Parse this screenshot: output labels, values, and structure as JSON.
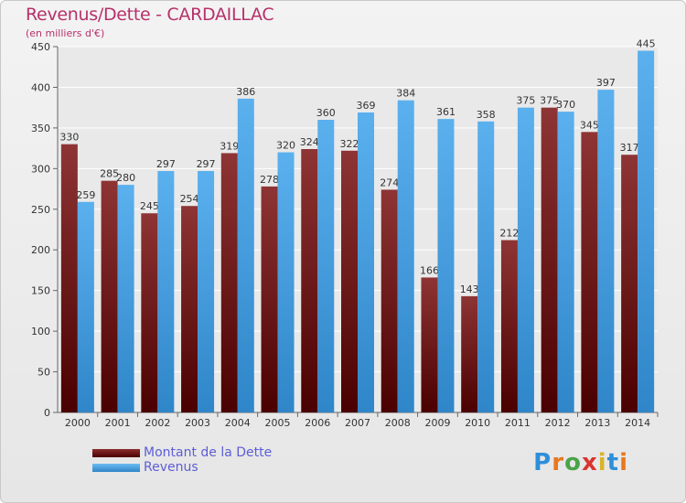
{
  "chart_data": {
    "type": "bar",
    "title": "Revenus/Dette - CARDAILLAC",
    "subtitle": "(en milliers d'€)",
    "categories": [
      "2000",
      "2001",
      "2002",
      "2003",
      "2004",
      "2005",
      "2006",
      "2007",
      "2008",
      "2009",
      "2010",
      "2011",
      "2012",
      "2013",
      "2014"
    ],
    "series": [
      {
        "name": "Montant de la Dette",
        "color": "#7a1f1f",
        "values": [
          330,
          285,
          245,
          254,
          319,
          278,
          324,
          322,
          274,
          166,
          143,
          212,
          375,
          345,
          317
        ]
      },
      {
        "name": "Revenus",
        "color": "#4aa3e6",
        "values": [
          259,
          280,
          297,
          297,
          386,
          320,
          360,
          369,
          384,
          361,
          358,
          375,
          370,
          397,
          445
        ]
      }
    ],
    "ylim": [
      0,
      450
    ],
    "yticks": [
      0,
      50,
      100,
      150,
      200,
      250,
      300,
      350,
      400,
      450
    ],
    "grid": true,
    "legend_position": "bottom-left"
  },
  "brand": {
    "name": "Proxiti",
    "letter_colors": [
      "#2e8fd8",
      "#e8781e",
      "#4aa34a",
      "#d8362e",
      "#d8b42e",
      "#2e8fd8",
      "#e8781e"
    ]
  }
}
